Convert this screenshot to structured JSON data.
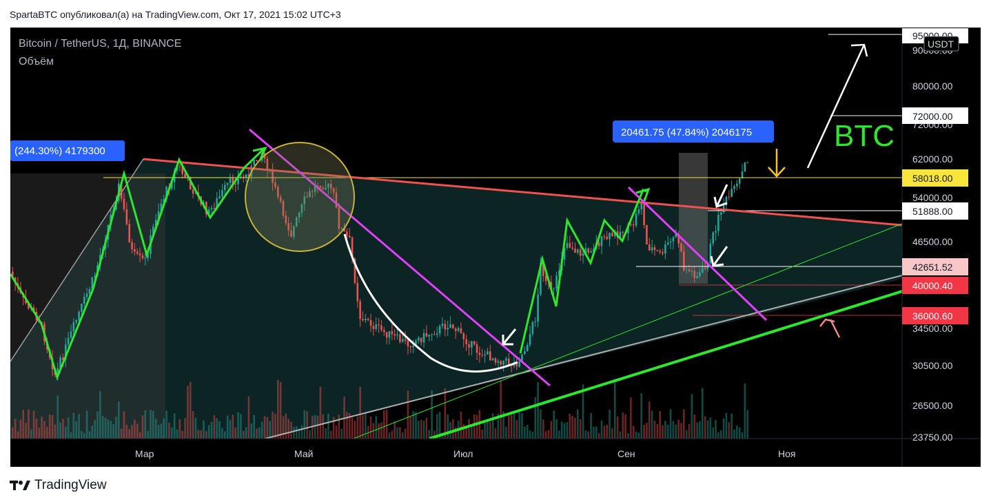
{
  "header": {
    "publisher_line": "SpartaBTC опубликовал(а) на TradingView.com, Окт 17, 2021 15:02 UTC+3"
  },
  "chart_header": {
    "symbol_line": "Bitcoin / TetherUS, 1Д, BINANCE",
    "volume_label": "Объём"
  },
  "footer": {
    "brand": "TradingView",
    "logo_icon": "tradingview-logo-icon"
  },
  "colors": {
    "background": "#000000",
    "bull": "#26a69a",
    "bear": "#ef5350",
    "resistance_line": "#ef5350",
    "channel_line": "#e040fb",
    "wave_line": "#2ee62e",
    "support_line": "#2ee62e",
    "level_yellow": "#f7e53b",
    "level_red": "#f23645"
  },
  "chart_data": {
    "type": "candlestick",
    "title": "Bitcoin / TetherUS, 1Д, BINANCE",
    "currency": "USDT",
    "price_axis": {
      "scale": "log",
      "ticks": [
        95000,
        90000,
        80000,
        72000,
        62000,
        54000,
        46500,
        34500,
        30500,
        26500,
        23750
      ],
      "tick_labels": [
        "95000.00",
        "90000.00",
        "80000.00",
        "72000.00",
        "62000.00",
        "54000.00",
        "46500.00",
        "34500.00",
        "30500.00",
        "26500.00",
        "23750.00"
      ],
      "range": [
        23000,
        100000
      ]
    },
    "time_axis": {
      "labels": [
        "Мар",
        "Май",
        "Июл",
        "Сен",
        "Ноя"
      ]
    },
    "levels": [
      {
        "label": "95000.00",
        "value": 95000,
        "style": "white"
      },
      {
        "label": "72000.00",
        "value": 72000,
        "style": "white"
      },
      {
        "label": "58018.00",
        "value": 58018,
        "style": "yellow"
      },
      {
        "label": "51888.00",
        "value": 51888,
        "style": "white"
      },
      {
        "label": "42651.52",
        "value": 42651.52,
        "style": "pink"
      },
      {
        "label": "40000.40",
        "value": 40000.4,
        "style": "red"
      },
      {
        "label": "36000.60",
        "value": 36000.6,
        "style": "red"
      }
    ],
    "annotations": {
      "measure_left": "(244.30%) 4179300",
      "measure_right": "20461.75 (47.84%) 2046175",
      "ticker_text": "BTC"
    },
    "legend": "none",
    "grid": false
  }
}
